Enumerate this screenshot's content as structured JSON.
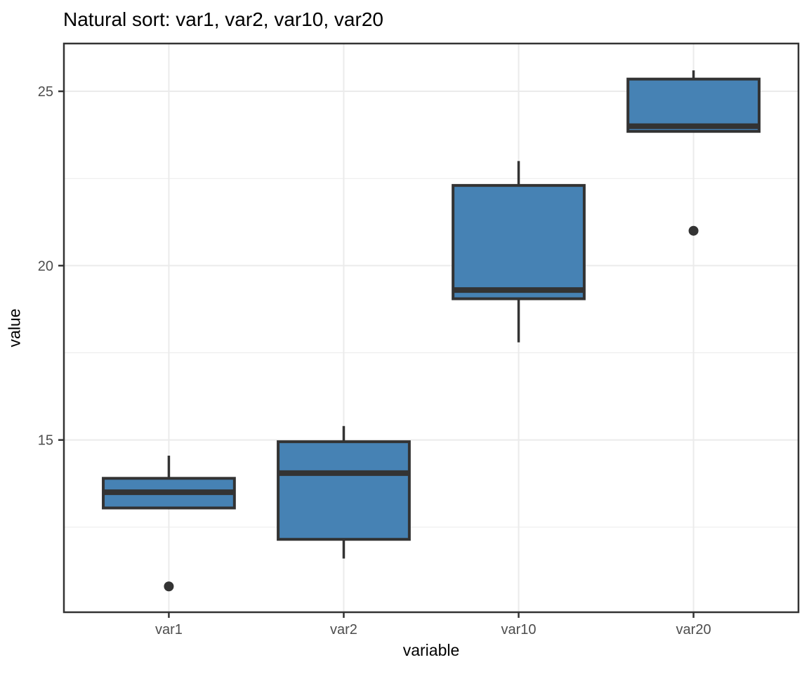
{
  "title": "Natural sort: var1, var2, var10, var20",
  "chart_data": {
    "type": "boxplot",
    "title": "Natural sort: var1, var2, var10, var20",
    "xlabel": "variable",
    "ylabel": "value",
    "categories": [
      "var1",
      "var2",
      "var10",
      "var20"
    ],
    "series": [
      {
        "name": "var1",
        "whisker_low": 13.05,
        "q1": 13.05,
        "median": 13.5,
        "q3": 13.9,
        "whisker_high": 14.55,
        "outliers": [
          10.8
        ]
      },
      {
        "name": "var2",
        "whisker_low": 11.6,
        "q1": 12.15,
        "median": 14.05,
        "q3": 14.95,
        "whisker_high": 15.4,
        "outliers": []
      },
      {
        "name": "var10",
        "whisker_low": 17.8,
        "q1": 19.05,
        "median": 19.3,
        "q3": 22.3,
        "whisker_high": 23.0,
        "outliers": []
      },
      {
        "name": "var20",
        "whisker_low": 23.85,
        "q1": 23.85,
        "median": 24.0,
        "q3": 25.35,
        "whisker_high": 25.6,
        "outliers": [
          21.0
        ]
      }
    ],
    "y_major_ticks": [
      15,
      20,
      25
    ],
    "y_minor_ticks": [
      12.5,
      17.5,
      22.5
    ],
    "y_tick_labels": [
      "15",
      "20",
      "25"
    ],
    "ylim": [
      10.06,
      26.37
    ],
    "grid": true,
    "legend": false,
    "colors": {
      "box_fill": "#4682B4",
      "box_stroke": "#333333",
      "median": "#333333",
      "whisker": "#333333",
      "outlier": "#333333",
      "grid_line": "#EBEBEB",
      "panel_border": "#333333",
      "panel_background": "#FFFFFF",
      "axis_tick": "#333333",
      "axis_text": "#4D4D4D",
      "title_text": "#000000"
    }
  }
}
